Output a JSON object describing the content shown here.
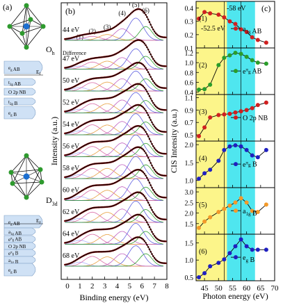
{
  "panel_a": {
    "label": "(a)",
    "oh": {
      "symmetry": "O",
      "sub": "h",
      "levels": [
        "e_g AB",
        "E_F",
        "t_2g AB",
        "O 2p NB",
        "t_2g B",
        "e_g B"
      ]
    },
    "d3d": {
      "symmetry": "D",
      "sub": "3d",
      "levels": [
        "e_g AB",
        "E_F",
        "a_1g AB",
        "e_g^π AB",
        "O 2p NB",
        "e_g^π B",
        "a_1g B",
        "e_g B"
      ]
    }
  },
  "colors": {
    "data": "#7a0000",
    "fit": "#000000",
    "comp1": "#b0b0ff",
    "comp2": "#d86aa6",
    "comp3": "#e8a040",
    "comp4": "#c060c0",
    "comp5": "#6060e0",
    "comp6": "#30a030",
    "yellow": "#fcf58a",
    "cyan": "#4fe6ef",
    "marker_red": "#d02020",
    "marker_green": "#2a9d2a",
    "marker_blue": "#2020c0",
    "marker_orange": "#f39a2a"
  },
  "chart_data": [
    {
      "type": "line",
      "panel": "(b)",
      "xlabel": "Binding energy (eV)",
      "ylabel": "Intensity (a.u.)",
      "xlim": [
        -0.5,
        8
      ],
      "xticks": [
        "0",
        "1",
        "2",
        "3",
        "4",
        "5",
        "6",
        "7",
        "8"
      ],
      "peak_labels": [
        "(1)",
        "(2)",
        "(3)",
        "(4)",
        "(5)",
        "(6)"
      ],
      "peak_positions": [
        1.0,
        2.0,
        3.2,
        4.4,
        5.5,
        6.3
      ],
      "difference_label": "Difference",
      "spectra": [
        {
          "energy": "44 eV",
          "amps": [
            0.1,
            0.18,
            0.26,
            0.52,
            1.0,
            0.62
          ]
        },
        {
          "energy": "47 eV",
          "amps": [
            0.14,
            0.32,
            0.36,
            0.52,
            0.92,
            0.58
          ]
        },
        {
          "energy": "50 eV",
          "amps": [
            0.16,
            0.38,
            0.4,
            0.55,
            0.9,
            0.55
          ]
        },
        {
          "energy": "52 eV",
          "amps": [
            0.17,
            0.42,
            0.42,
            0.58,
            0.92,
            0.56
          ]
        },
        {
          "energy": "54 eV",
          "amps": [
            0.18,
            0.45,
            0.44,
            0.6,
            0.95,
            0.58
          ]
        },
        {
          "energy": "56 eV",
          "amps": [
            0.18,
            0.46,
            0.45,
            0.62,
            0.98,
            0.6
          ]
        },
        {
          "energy": "58 eV",
          "amps": [
            0.18,
            0.46,
            0.46,
            0.63,
            1.0,
            0.62
          ]
        },
        {
          "energy": "60 eV",
          "amps": [
            0.18,
            0.47,
            0.46,
            0.62,
            0.98,
            0.6
          ]
        },
        {
          "energy": "62 eV",
          "amps": [
            0.18,
            0.46,
            0.45,
            0.6,
            0.96,
            0.58
          ]
        },
        {
          "energy": "64 eV",
          "amps": [
            0.18,
            0.45,
            0.44,
            0.58,
            0.94,
            0.58
          ]
        },
        {
          "energy": "68 eV",
          "amps": [
            0.18,
            0.44,
            0.42,
            0.56,
            0.92,
            0.56
          ]
        }
      ]
    },
    {
      "type": "scatter",
      "panel": "(c)",
      "xlabel": "Photon energy (eV)",
      "ylabel": "CIS Intensity (a.u.)",
      "xlim": [
        42,
        70
      ],
      "xticks": [
        "45",
        "50",
        "55",
        "60",
        "65",
        "70"
      ],
      "shaded_regions": [
        {
          "from": 42,
          "to": 53,
          "color": "yellow"
        },
        {
          "from": 53,
          "to": 63,
          "color": "cyan"
        }
      ],
      "vlines": [
        52,
        58
      ],
      "annotations": [
        "-52.5 eV",
        "-58 eV"
      ],
      "x": [
        43,
        45,
        47,
        50,
        52,
        54,
        56,
        58,
        60,
        62,
        64,
        67
      ],
      "subplots": [
        {
          "tag": "(1)",
          "name": "a_1g AB",
          "color": "marker_red",
          "ylim": [
            0.1,
            0.45
          ],
          "yticks": [
            "0.1",
            "0.2",
            "0.3",
            "0.4"
          ],
          "values": [
            0.32,
            0.37,
            0.36,
            0.35,
            0.33,
            0.3,
            0.28,
            0.24,
            0.22,
            0.18,
            0.16,
            0.14
          ]
        },
        {
          "tag": "(2)",
          "name": "e_g^π AB",
          "color": "marker_green",
          "ylim": [
            0.35,
            1.3
          ],
          "yticks": [
            "0.4",
            "0.6",
            "0.8",
            "1.0",
            "1.2"
          ],
          "values": [
            0.45,
            0.46,
            0.55,
            0.95,
            1.1,
            1.15,
            1.2,
            1.18,
            1.12,
            1.05,
            1.0,
            0.98
          ]
        },
        {
          "tag": "(3)",
          "name": "O 2p NB",
          "color": "marker_red",
          "ylim": [
            0.4,
            1.15
          ],
          "yticks": [
            "0.5",
            "0.7",
            "0.9",
            "1.1"
          ],
          "values": [
            0.48,
            0.62,
            0.78,
            0.82,
            0.83,
            0.84,
            0.86,
            0.88,
            0.9,
            0.93,
            0.98,
            1.02
          ]
        },
        {
          "tag": "(4)",
          "name": "e_g^π B",
          "color": "marker_blue",
          "ylim": [
            0.8,
            2.1
          ],
          "yticks": [
            "1.0",
            "1.5",
            "2.0"
          ],
          "values": [
            1.05,
            1.2,
            1.3,
            1.55,
            1.85,
            1.95,
            1.98,
            1.95,
            1.85,
            1.7,
            1.65,
            1.85
          ]
        },
        {
          "tag": "(5)",
          "name": "a_1g B",
          "color": "marker_orange",
          "ylim": [
            1.0,
            3.2
          ],
          "yticks": [
            "1.5",
            "2.0",
            "2.5",
            "3.0"
          ],
          "values": [
            1.3,
            1.6,
            1.8,
            2.05,
            2.2,
            2.35,
            2.5,
            2.7,
            2.5,
            2.1,
            2.05,
            2.4
          ]
        },
        {
          "tag": "(6)",
          "name": "e_g B",
          "color": "marker_blue",
          "ylim": [
            0.4,
            1.75
          ],
          "yticks": [
            "0.5",
            "1.0",
            "1.5"
          ],
          "values": [
            0.5,
            0.62,
            0.82,
            0.92,
            1.02,
            1.2,
            1.4,
            1.6,
            1.4,
            1.3,
            1.3,
            1.3
          ]
        }
      ]
    }
  ]
}
